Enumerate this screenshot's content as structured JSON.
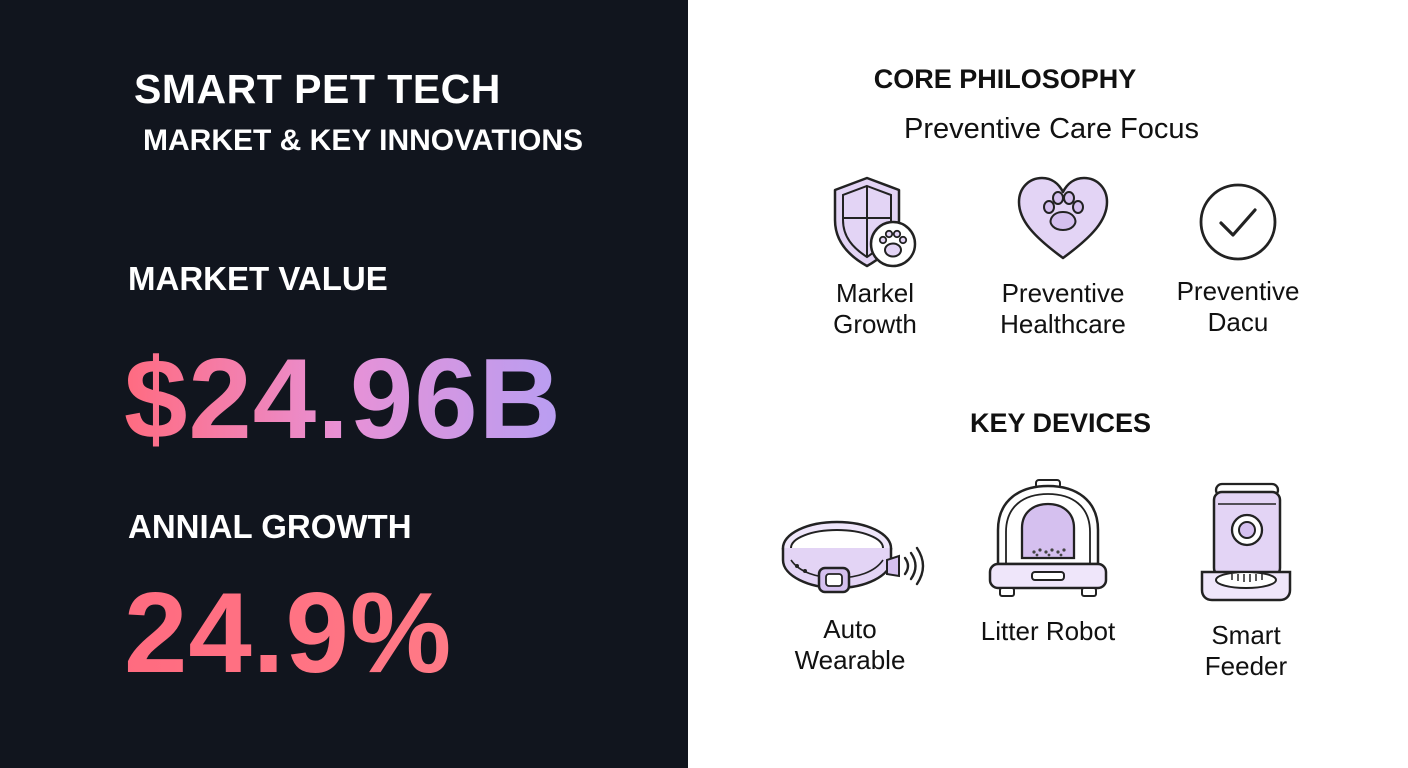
{
  "left": {
    "title": "SMART PET TECH",
    "subtitle": "MARKET & KEY INNOVATIONS",
    "market_value_label": "MARKET VALUE",
    "market_value": "$24.96B",
    "growth_label": "ANNIAL GROWTH",
    "growth_value": "24.9%"
  },
  "philosophy": {
    "heading": "CORE PHILOSOPHY",
    "subheading": "Preventive Care Focus",
    "items": [
      {
        "icon": "shield-paw-icon",
        "line1": "Markel",
        "line2": "Growth"
      },
      {
        "icon": "heart-paw-icon",
        "line1": "Preventive",
        "line2": "Healthcare"
      },
      {
        "icon": "check-circle-icon",
        "line1": "Preventive",
        "line2": "Dacu"
      }
    ]
  },
  "devices": {
    "heading": "KEY DEVICES",
    "items": [
      {
        "icon": "smart-collar-icon",
        "line1": "Auto",
        "line2": "Wearable"
      },
      {
        "icon": "litter-robot-icon",
        "line1": "Litter Robot",
        "line2": ""
      },
      {
        "icon": "smart-feeder-icon",
        "line1": "Smart",
        "line2": "Feeder"
      }
    ]
  },
  "colors": {
    "left_background": "#11151e",
    "accent_coral": "#ff6b80",
    "accent_lavender": "#b89ef2",
    "icon_fill": "#e3d4f5"
  }
}
